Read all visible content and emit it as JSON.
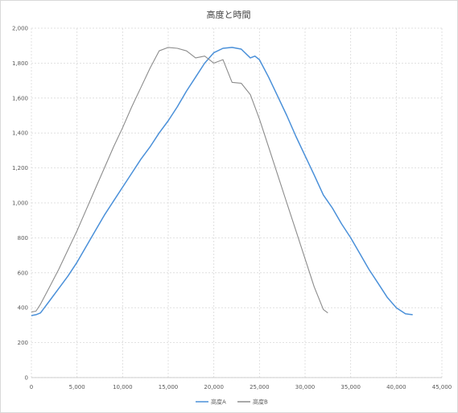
{
  "chart_data": {
    "type": "line",
    "title": "高度と時間",
    "xlabel": "",
    "ylabel": "",
    "xlim": [
      0,
      45000
    ],
    "ylim": [
      0,
      2000
    ],
    "x_ticks": [
      0,
      5000,
      10000,
      15000,
      20000,
      25000,
      30000,
      35000,
      40000,
      45000
    ],
    "x_tick_labels": [
      "0",
      "5,000",
      "10,000",
      "15,000",
      "20,000",
      "25,000",
      "30,000",
      "35,000",
      "40,000",
      "45,000"
    ],
    "y_ticks": [
      0,
      200,
      400,
      600,
      800,
      1000,
      1200,
      1400,
      1600,
      1800,
      2000
    ],
    "y_tick_labels": [
      "0",
      "200",
      "400",
      "600",
      "800",
      "1,000",
      "1,200",
      "1,400",
      "1,600",
      "1,800",
      "2,000"
    ],
    "grid": true,
    "legend_position": "bottom",
    "series": [
      {
        "name": "高度A",
        "color": "#4a90d9",
        "x": [
          0,
          500,
          1000,
          2000,
          3000,
          4000,
          5000,
          6000,
          7000,
          8000,
          9000,
          10000,
          11000,
          12000,
          13000,
          14000,
          15000,
          16000,
          17000,
          18000,
          19000,
          20000,
          21000,
          22000,
          23000,
          24000,
          24500,
          25000,
          26000,
          27000,
          28000,
          29000,
          30000,
          31000,
          32000,
          33000,
          34000,
          35000,
          36000,
          37000,
          38000,
          39000,
          40000,
          41000,
          41800
        ],
        "y": [
          355,
          360,
          370,
          440,
          510,
          580,
          660,
          750,
          840,
          930,
          1010,
          1090,
          1170,
          1250,
          1320,
          1400,
          1470,
          1550,
          1640,
          1720,
          1800,
          1860,
          1885,
          1890,
          1880,
          1830,
          1840,
          1820,
          1720,
          1610,
          1500,
          1380,
          1270,
          1160,
          1045,
          970,
          880,
          800,
          710,
          620,
          540,
          460,
          400,
          365,
          360
        ]
      },
      {
        "name": "高度B",
        "color": "#8c8c8c",
        "x": [
          0,
          500,
          1000,
          2000,
          3000,
          4000,
          5000,
          6000,
          7000,
          8000,
          9000,
          10000,
          11000,
          12000,
          13000,
          14000,
          15000,
          16000,
          17000,
          18000,
          19000,
          20000,
          21000,
          22000,
          23000,
          24000,
          25000,
          26000,
          27000,
          28000,
          29000,
          30000,
          31000,
          32000,
          32500
        ],
        "y": [
          375,
          380,
          420,
          520,
          620,
          730,
          840,
          960,
          1080,
          1200,
          1320,
          1430,
          1550,
          1660,
          1770,
          1870,
          1890,
          1885,
          1870,
          1830,
          1840,
          1800,
          1820,
          1690,
          1685,
          1620,
          1480,
          1320,
          1160,
          1000,
          840,
          680,
          520,
          390,
          370
        ]
      }
    ]
  }
}
